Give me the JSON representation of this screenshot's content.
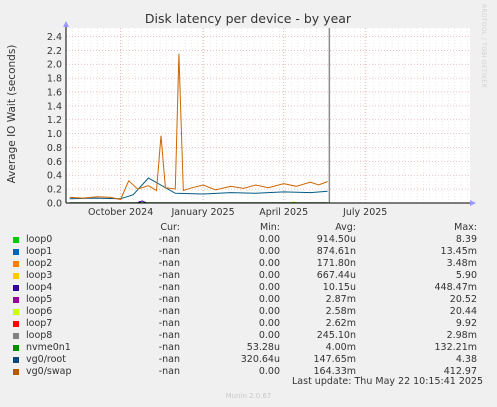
{
  "chart_data": {
    "type": "line",
    "title": "Disk latency per device - by year",
    "ylabel": "Average IO Wait (seconds)",
    "xlabel": "",
    "ylim": [
      0,
      2.5
    ],
    "yticks": [
      0.0,
      0.2,
      0.4,
      0.6,
      0.8,
      1.0,
      1.2,
      1.4,
      1.6,
      1.8,
      2.0,
      2.2,
      2.4
    ],
    "xtick_labels": [
      "October 2024",
      "January 2025",
      "April 2025",
      "July 2025"
    ],
    "grid": true,
    "x_range": [
      "2024-08-01",
      "2025-10-26"
    ],
    "x_ticks": [
      "2024-10-01",
      "2025-01-01",
      "2025-04-01",
      "2025-07-01"
    ],
    "now_marker": "2025-05-22",
    "series": [
      {
        "name": "vg0/swap",
        "color": "#cc6600",
        "x": [
          "2024-08-05",
          "2024-08-20",
          "2024-09-05",
          "2024-09-20",
          "2024-10-01",
          "2024-10-10",
          "2024-10-20",
          "2024-11-01",
          "2024-11-10",
          "2024-11-15",
          "2024-11-20",
          "2024-12-01",
          "2024-12-05",
          "2024-12-10",
          "2024-12-20",
          "2025-01-01",
          "2025-01-15",
          "2025-02-01",
          "2025-02-15",
          "2025-03-01",
          "2025-03-15",
          "2025-04-01",
          "2025-04-15",
          "2025-05-01",
          "2025-05-10",
          "2025-05-20"
        ],
        "y": [
          0.08,
          0.07,
          0.09,
          0.08,
          0.05,
          0.32,
          0.2,
          0.25,
          0.18,
          0.97,
          0.22,
          0.2,
          2.15,
          0.18,
          0.22,
          0.26,
          0.19,
          0.24,
          0.21,
          0.26,
          0.22,
          0.28,
          0.24,
          0.3,
          0.26,
          0.31
        ]
      },
      {
        "name": "vg0/root",
        "color": "#005a82",
        "x": [
          "2024-08-05",
          "2024-09-01",
          "2024-10-01",
          "2024-10-15",
          "2024-11-01",
          "2024-12-01",
          "2025-01-01",
          "2025-02-01",
          "2025-03-01",
          "2025-04-01",
          "2025-05-01",
          "2025-05-20"
        ],
        "y": [
          0.06,
          0.07,
          0.06,
          0.12,
          0.36,
          0.14,
          0.13,
          0.15,
          0.14,
          0.16,
          0.15,
          0.17
        ]
      },
      {
        "name": "nvme0n1",
        "color": "#006600",
        "x": [
          "2024-08-05",
          "2024-10-01",
          "2024-12-01",
          "2025-02-01",
          "2025-04-01",
          "2025-05-20"
        ],
        "y": [
          0.005,
          0.004,
          0.005,
          0.004,
          0.005,
          0.004
        ]
      },
      {
        "name": "loop4",
        "color": "#330099",
        "x": [
          "2024-08-05",
          "2024-10-20",
          "2024-10-25",
          "2024-10-30",
          "2025-05-20"
        ],
        "y": [
          0.0,
          0.0,
          0.03,
          0.0,
          0.0
        ]
      },
      {
        "name": "loop5",
        "color": "#990099",
        "x": [
          "2024-08-05",
          "2024-10-20",
          "2024-10-22",
          "2024-10-24",
          "2025-05-20"
        ],
        "y": [
          0.0,
          0.0,
          0.02,
          0.0,
          0.0
        ]
      },
      {
        "name": "loop6",
        "color": "#ccff00",
        "x": [
          "2024-08-05",
          "2025-04-10",
          "2025-04-12",
          "2025-04-14",
          "2025-05-20"
        ],
        "y": [
          0.0,
          0.0,
          0.02,
          0.0,
          0.0
        ]
      }
    ],
    "legend": {
      "headers": [
        "Cur:",
        "Min:",
        "Avg:",
        "Max:"
      ],
      "rows": [
        {
          "name": "loop0",
          "color": "#00cc00",
          "cur": "-nan",
          "min": "0.00",
          "avg": "914.50u",
          "max": "8.39"
        },
        {
          "name": "loop1",
          "color": "#0066b3",
          "cur": "-nan",
          "min": "0.00",
          "avg": "874.61n",
          "max": "13.45m"
        },
        {
          "name": "loop2",
          "color": "#ff8000",
          "cur": "-nan",
          "min": "0.00",
          "avg": "171.80n",
          "max": "3.48m"
        },
        {
          "name": "loop3",
          "color": "#ffcc00",
          "cur": "-nan",
          "min": "0.00",
          "avg": "667.44u",
          "max": "5.90"
        },
        {
          "name": "loop4",
          "color": "#330099",
          "cur": "-nan",
          "min": "0.00",
          "avg": "10.15u",
          "max": "448.47m"
        },
        {
          "name": "loop5",
          "color": "#990099",
          "cur": "-nan",
          "min": "0.00",
          "avg": "2.87m",
          "max": "20.52"
        },
        {
          "name": "loop6",
          "color": "#ccff00",
          "cur": "-nan",
          "min": "0.00",
          "avg": "2.58m",
          "max": "20.44"
        },
        {
          "name": "loop7",
          "color": "#ff0000",
          "cur": "-nan",
          "min": "0.00",
          "avg": "2.62m",
          "max": "9.92"
        },
        {
          "name": "loop8",
          "color": "#808080",
          "cur": "-nan",
          "min": "0.00",
          "avg": "245.10n",
          "max": "2.98m"
        },
        {
          "name": "nvme0n1",
          "color": "#008f00",
          "cur": "-nan",
          "min": "53.28u",
          "avg": "4.00m",
          "max": "132.21m"
        },
        {
          "name": "vg0/root",
          "color": "#00487d",
          "cur": "-nan",
          "min": "320.64u",
          "avg": "147.65m",
          "max": "4.38"
        },
        {
          "name": "vg0/swap",
          "color": "#b35a00",
          "cur": "-nan",
          "min": "0.00",
          "avg": "164.33m",
          "max": "412.97"
        }
      ]
    }
  },
  "footer": "Last update: Thu May 22 10:15:41 2025",
  "munin_version": "Munin 2.0.67",
  "watermark": "RRDTOOL / TOBI OETIKER"
}
